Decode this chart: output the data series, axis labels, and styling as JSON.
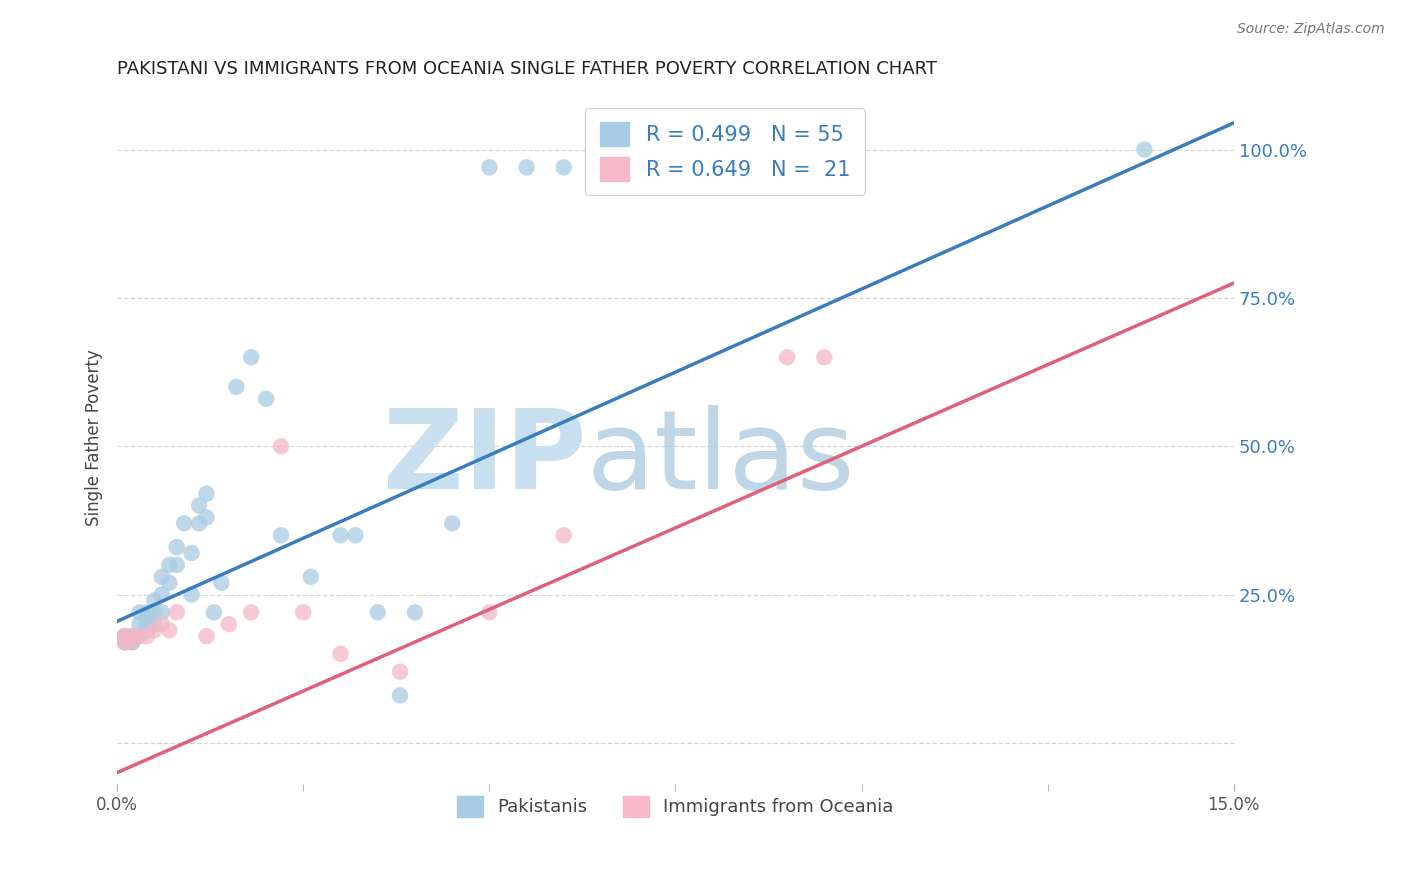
{
  "title": "PAKISTANI VS IMMIGRANTS FROM OCEANIA SINGLE FATHER POVERTY CORRELATION CHART",
  "source": "Source: ZipAtlas.com",
  "ylabel": "Single Father Poverty",
  "y_ticks": [
    0.0,
    0.25,
    0.5,
    0.75,
    1.0
  ],
  "y_tick_labels": [
    "",
    "25.0%",
    "50.0%",
    "75.0%",
    "100.0%"
  ],
  "xlim": [
    0.0,
    0.15
  ],
  "ylim": [
    -0.07,
    1.1
  ],
  "blue_color": "#a8cce4",
  "pink_color": "#f4b8c8",
  "blue_line_color": "#3a7dbf",
  "pink_line_color": "#e0607a",
  "legend_text_color": "#3a7dbf",
  "title_color": "#222222",
  "pak_r": "R = 0.499",
  "pak_n": "N = 55",
  "oce_r": "R = 0.649",
  "oce_n": "N =  21",
  "pak_label": "Pakistanis",
  "oce_label": "Immigrants from Oceania",
  "blue_intercept": 0.205,
  "blue_slope": 5.6,
  "pink_intercept": -0.05,
  "pink_slope": 5.5,
  "pakistanis_x": [
    0.001,
    0.001,
    0.001,
    0.001,
    0.001,
    0.002,
    0.002,
    0.002,
    0.002,
    0.002,
    0.003,
    0.003,
    0.003,
    0.004,
    0.004,
    0.004,
    0.004,
    0.005,
    0.005,
    0.005,
    0.006,
    0.006,
    0.006,
    0.007,
    0.007,
    0.008,
    0.008,
    0.009,
    0.01,
    0.01,
    0.011,
    0.011,
    0.012,
    0.012,
    0.013,
    0.014,
    0.016,
    0.018,
    0.02,
    0.022,
    0.026,
    0.03,
    0.032,
    0.035,
    0.038,
    0.04,
    0.045,
    0.05,
    0.055,
    0.06,
    0.065,
    0.07,
    0.075,
    0.08,
    0.138
  ],
  "pakistanis_y": [
    0.17,
    0.17,
    0.17,
    0.18,
    0.18,
    0.17,
    0.17,
    0.17,
    0.18,
    0.18,
    0.18,
    0.2,
    0.22,
    0.19,
    0.2,
    0.21,
    0.22,
    0.2,
    0.22,
    0.24,
    0.22,
    0.25,
    0.28,
    0.27,
    0.3,
    0.3,
    0.33,
    0.37,
    0.25,
    0.32,
    0.37,
    0.4,
    0.38,
    0.42,
    0.22,
    0.27,
    0.6,
    0.65,
    0.58,
    0.35,
    0.28,
    0.35,
    0.35,
    0.22,
    0.08,
    0.22,
    0.37,
    0.97,
    0.97,
    0.97,
    0.97,
    0.97,
    0.97,
    0.97,
    1.0
  ],
  "oceania_x": [
    0.001,
    0.001,
    0.002,
    0.002,
    0.003,
    0.004,
    0.005,
    0.006,
    0.007,
    0.008,
    0.012,
    0.015,
    0.018,
    0.022,
    0.025,
    0.03,
    0.038,
    0.05,
    0.06,
    0.09,
    0.095
  ],
  "oceania_y": [
    0.17,
    0.18,
    0.17,
    0.18,
    0.18,
    0.18,
    0.19,
    0.2,
    0.19,
    0.22,
    0.18,
    0.2,
    0.22,
    0.5,
    0.22,
    0.15,
    0.12,
    0.22,
    0.35,
    0.65,
    0.65
  ]
}
